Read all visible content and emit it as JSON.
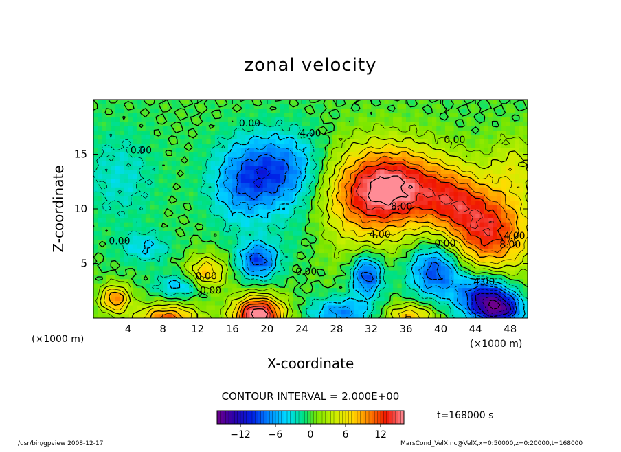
{
  "chart_data": {
    "type": "heatmap",
    "title": "zonal velocity",
    "xlabel": "X-coordinate",
    "ylabel": "Z-coordinate",
    "x_unit": "(×1000 m)",
    "z_unit": "(×1000 m)",
    "xlim": [
      0,
      50
    ],
    "zlim": [
      0,
      20
    ],
    "x_ticks": [
      4,
      8,
      12,
      16,
      20,
      24,
      28,
      32,
      36,
      40,
      44,
      48
    ],
    "z_ticks": [
      5,
      10,
      15
    ],
    "contour_interval_label": "CONTOUR INTERVAL = 2.000E+00",
    "contour_labels": [
      {
        "text": "0.00",
        "x": 18.0,
        "z": 17.8
      },
      {
        "text": "4.00",
        "x": 25.0,
        "z": 16.9
      },
      {
        "text": "0.00",
        "x": 41.6,
        "z": 16.3
      },
      {
        "text": "0.00",
        "x": 5.5,
        "z": 15.3
      },
      {
        "text": "8.00",
        "x": 35.5,
        "z": 10.2
      },
      {
        "text": "4.00",
        "x": 33.0,
        "z": 7.6
      },
      {
        "text": "0.00",
        "x": 40.5,
        "z": 6.8
      },
      {
        "text": "4.00",
        "x": 48.5,
        "z": 7.5
      },
      {
        "text": "8.00",
        "x": 48.0,
        "z": 6.7
      },
      {
        "text": "0.00",
        "x": 3.0,
        "z": 7.0
      },
      {
        "text": "0.00",
        "x": 24.5,
        "z": 4.2
      },
      {
        "text": "0.00",
        "x": 13.0,
        "z": 3.8
      },
      {
        "text": "0.00",
        "x": 13.5,
        "z": 2.5
      },
      {
        "text": "4.00",
        "x": 45.0,
        "z": 3.3
      }
    ],
    "colorbar": {
      "min": -16,
      "max": 16,
      "ticks": [
        -12,
        -6,
        0,
        6,
        12
      ]
    },
    "time_label": "t=168000 s",
    "field_blobs": [
      {
        "x": 34.5,
        "z": 12.0,
        "sx": 4.5,
        "sz": 2.6,
        "amp": 15
      },
      {
        "x": 30.0,
        "z": 10.0,
        "sx": 4.0,
        "sz": 3.5,
        "amp": 5
      },
      {
        "x": 45.5,
        "z": 8.0,
        "sx": 3.5,
        "sz": 2.8,
        "amp": 13
      },
      {
        "x": 41.5,
        "z": 11.0,
        "sx": 2.5,
        "sz": 2.0,
        "amp": 6
      },
      {
        "x": 21.0,
        "z": 13.5,
        "sx": 4.0,
        "sz": 2.4,
        "amp": -9
      },
      {
        "x": 17.0,
        "z": 11.5,
        "sx": 2.5,
        "sz": 2.5,
        "amp": -4
      },
      {
        "x": 19.0,
        "z": 0.3,
        "sx": 2.0,
        "sz": 1.2,
        "amp": 18
      },
      {
        "x": 8.5,
        "z": 0.0,
        "sx": 2.5,
        "sz": 0.9,
        "amp": 11
      },
      {
        "x": 2.5,
        "z": 1.8,
        "sx": 1.2,
        "sz": 0.9,
        "amp": 10
      },
      {
        "x": 13.0,
        "z": 4.2,
        "sx": 1.6,
        "sz": 1.1,
        "amp": 8
      },
      {
        "x": 36.5,
        "z": 0.2,
        "sx": 2.0,
        "sz": 0.8,
        "amp": 8
      },
      {
        "x": 19.0,
        "z": 5.3,
        "sx": 1.6,
        "sz": 1.2,
        "amp": -9
      },
      {
        "x": 31.5,
        "z": 4.0,
        "sx": 1.3,
        "sz": 1.4,
        "amp": -10
      },
      {
        "x": 39.5,
        "z": 4.5,
        "sx": 2.2,
        "sz": 1.8,
        "amp": -10
      },
      {
        "x": 45.0,
        "z": 2.0,
        "sx": 2.2,
        "sz": 1.5,
        "amp": -12
      },
      {
        "x": 47.0,
        "z": 0.8,
        "sx": 1.8,
        "sz": 1.0,
        "amp": -10
      },
      {
        "x": 28.5,
        "z": 0.5,
        "sx": 2.5,
        "sz": 1.0,
        "amp": -7
      },
      {
        "x": 10.0,
        "z": 3.0,
        "sx": 2.0,
        "sz": 0.8,
        "amp": -5
      },
      {
        "x": 3.0,
        "z": 13.0,
        "sx": 3.0,
        "sz": 3.0,
        "amp": -3
      },
      {
        "x": 6.0,
        "z": 6.5,
        "sx": 2.0,
        "sz": 1.0,
        "amp": -4
      },
      {
        "x": 48.5,
        "z": 14.0,
        "sx": 2.0,
        "sz": 2.0,
        "amp": 4
      },
      {
        "x": 25.0,
        "z": 8.5,
        "sx": 3.0,
        "sz": 2.5,
        "amp": -2
      }
    ]
  },
  "footer": {
    "left": "/usr/bin/gpview   2008-12-17",
    "right": "MarsCond_VelX.nc@VelX,x=0:50000,z=0:20000,t=168000"
  }
}
